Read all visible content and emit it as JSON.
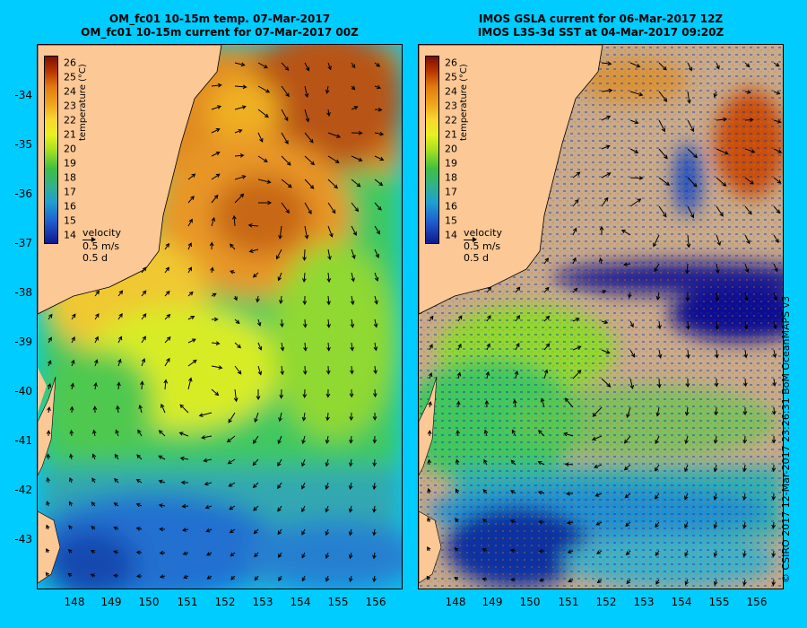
{
  "left_panel": {
    "title_line1": "OM_fc01 10-15m temp. 07-Mar-2017",
    "title_line2": "OM_fc01 10-15m current for 07-Mar-2017 00Z"
  },
  "right_panel": {
    "title_line1": "IMOS GSLA current for 06-Mar-2017 12Z",
    "title_line2": "IMOS L3S-3d SST at 04-Mar-2017 09:20Z"
  },
  "colorbar": {
    "unit_label": "temperature (°C)",
    "labels": [
      "26",
      "25",
      "24",
      "23",
      "22",
      "21",
      "20",
      "19",
      "18",
      "17",
      "16",
      "15",
      "14"
    ]
  },
  "velocity_legend": {
    "title": "velocity",
    "speed": "0.5 m/s",
    "duration": "0.5 d"
  },
  "latitude_ticks": [
    "-34",
    "-35",
    "-36",
    "-37",
    "-38",
    "-39",
    "-40",
    "-41",
    "-42",
    "-43"
  ],
  "longitude_ticks": [
    "148",
    "149",
    "150",
    "151",
    "152",
    "153",
    "154",
    "155",
    "156"
  ],
  "credit": "© CSIRO 2017  12-Mar-2017 23:26:31 BoM OceanMAPS v3",
  "colors": {
    "background": "#00ccff",
    "land": "#fcc896",
    "no_data": "#c8aa8c"
  }
}
